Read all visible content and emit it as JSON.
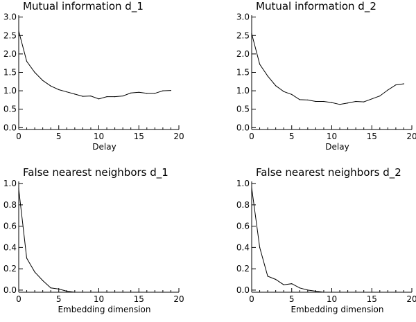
{
  "chart_data": [
    {
      "type": "line",
      "title": "Mutual information d_1",
      "xlabel": "Delay",
      "ylabel": "",
      "xlim": [
        0,
        20
      ],
      "ylim": [
        -0.05,
        3.05
      ],
      "xticks": [
        "0",
        "5",
        "10",
        "15",
        "20"
      ],
      "yticks": [
        "0.0",
        "0.5",
        "1.0",
        "1.5",
        "2.0",
        "2.5",
        "3.0"
      ],
      "grid": false,
      "series": [
        {
          "x": [
            0,
            1,
            2,
            3,
            4,
            5,
            6,
            7,
            8,
            9,
            10,
            11,
            12,
            13,
            14,
            15,
            16,
            17,
            18,
            19
          ],
          "values": [
            2.62,
            1.8,
            1.5,
            1.28,
            1.13,
            1.03,
            0.97,
            0.91,
            0.85,
            0.86,
            0.78,
            0.84,
            0.84,
            0.86,
            0.94,
            0.96,
            0.93,
            0.93,
            1.0,
            1.01
          ]
        }
      ]
    },
    {
      "type": "line",
      "title": "Mutual information d_2",
      "xlabel": "Delay",
      "ylabel": "",
      "xlim": [
        0,
        20
      ],
      "ylim": [
        -0.05,
        3.05
      ],
      "xticks": [
        "0",
        "5",
        "10",
        "15",
        "20"
      ],
      "yticks": [
        "0.0",
        "0.5",
        "1.0",
        "1.5",
        "2.0",
        "2.5",
        "3.0"
      ],
      "grid": false,
      "series": [
        {
          "x": [
            0,
            1,
            2,
            3,
            4,
            5,
            6,
            7,
            8,
            9,
            10,
            11,
            12,
            13,
            14,
            15,
            16,
            17,
            18,
            19
          ],
          "values": [
            2.55,
            1.72,
            1.4,
            1.14,
            0.98,
            0.9,
            0.76,
            0.75,
            0.71,
            0.71,
            0.68,
            0.63,
            0.67,
            0.71,
            0.7,
            0.78,
            0.86,
            1.02,
            1.16,
            1.19
          ]
        }
      ]
    },
    {
      "type": "line",
      "title": "False nearest neighbors d_1",
      "xlabel": "Embedding dimension",
      "ylabel": "",
      "xlim": [
        0,
        20
      ],
      "ylim": [
        -0.02,
        1.02
      ],
      "xticks": [
        "0",
        "5",
        "10",
        "15",
        "20"
      ],
      "yticks": [
        "0.0",
        "0.2",
        "0.4",
        "0.6",
        "0.8",
        "1.0"
      ],
      "grid": false,
      "series": [
        {
          "x": [
            0,
            1,
            2,
            3,
            4,
            5,
            6,
            7,
            8,
            9,
            10,
            11,
            12,
            13,
            14,
            15,
            16,
            17,
            18,
            19
          ],
          "values": [
            0.95,
            0.3,
            0.17,
            0.09,
            0.02,
            0.01,
            -0.01,
            -0.02,
            -0.02,
            -0.02,
            -0.02,
            -0.02,
            -0.02,
            -0.02,
            -0.02,
            -0.02,
            -0.02,
            -0.02,
            -0.02,
            -0.02
          ]
        }
      ]
    },
    {
      "type": "line",
      "title": "False nearest neighbors d_2",
      "xlabel": "Embedding dimension",
      "ylabel": "",
      "xlim": [
        0,
        20
      ],
      "ylim": [
        -0.02,
        1.02
      ],
      "xticks": [
        "0",
        "5",
        "10",
        "15",
        "20"
      ],
      "yticks": [
        "0.0",
        "0.2",
        "0.4",
        "0.6",
        "0.8",
        "1.0"
      ],
      "grid": false,
      "series": [
        {
          "x": [
            0,
            1,
            2,
            3,
            4,
            5,
            6,
            7,
            8,
            9,
            10,
            11,
            12,
            13,
            14,
            15,
            16,
            17,
            18,
            19
          ],
          "values": [
            0.96,
            0.4,
            0.13,
            0.1,
            0.05,
            0.06,
            0.02,
            0.0,
            -0.01,
            -0.02,
            -0.02,
            -0.02,
            -0.02,
            -0.02,
            -0.02,
            -0.02,
            -0.02,
            -0.02,
            -0.02,
            -0.02
          ]
        }
      ]
    }
  ]
}
